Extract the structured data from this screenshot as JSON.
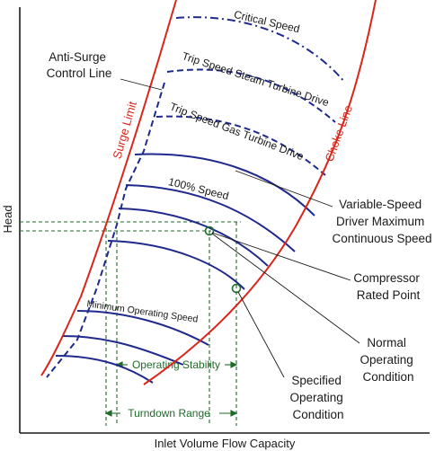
{
  "diagram": {
    "axes": {
      "y_label": "Head",
      "x_label": "Inlet Volume Flow Capacity"
    },
    "lines": {
      "surge_limit": "Surge Limit",
      "choke_line": "Choke Line",
      "anti_surge": [
        "Anti-Surge",
        "Control Line"
      ]
    },
    "curves": {
      "critical_speed": "Critical Speed",
      "trip_steam": "Trip Speed Steam Turbine Drive",
      "trip_gas": "Trip Speed Gas Turbine Drive",
      "speed_100": "100% Speed",
      "minimum_speed": "Minimum Operating Speed"
    },
    "callouts": {
      "variable_speed": [
        "Variable-Speed",
        "Driver Maximum",
        "Continuous Speed"
      ],
      "compressor_rated": [
        "Compressor",
        "Rated Point"
      ],
      "normal_operating": [
        "Normal",
        "Operating",
        "Condition"
      ],
      "specified_operating": [
        "Specified",
        "Operating",
        "Condition"
      ]
    },
    "ranges": {
      "operating_stability": "Operating Stability",
      "turndown_range": "Turndown Range"
    },
    "colors": {
      "red": "#d8261a",
      "blue": "#1f2a8c",
      "green": "#1f6b2a",
      "black": "#1a1a1a"
    }
  }
}
